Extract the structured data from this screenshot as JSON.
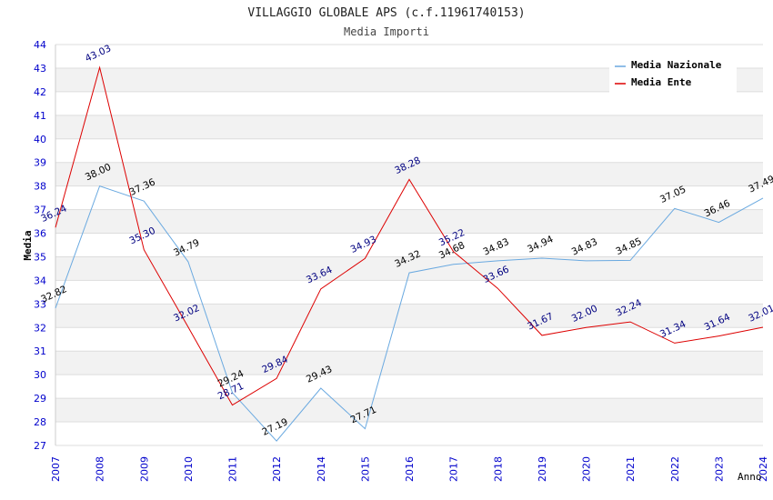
{
  "chart_data": {
    "type": "line",
    "title": "VILLAGGIO GLOBALE APS (c.f.11961740153)",
    "subtitle": "Media Importi",
    "xlabel": "Anno",
    "ylabel": "Media",
    "ylim": [
      27,
      44
    ],
    "yticks": [
      "27",
      "28",
      "29",
      "30",
      "31",
      "32",
      "33",
      "34",
      "35",
      "36",
      "37",
      "38",
      "39",
      "40",
      "41",
      "42",
      "43",
      "44"
    ],
    "categories": [
      "2007",
      "2008",
      "2009",
      "2010",
      "2011",
      "2012",
      "2014",
      "2015",
      "2016",
      "2017",
      "2018",
      "2019",
      "2020",
      "2021",
      "2022",
      "2023",
      "2024"
    ],
    "series": [
      {
        "name": "Media Nazionale",
        "color": "#6aa9e0",
        "label_color": "#000000",
        "values": [
          32.82,
          38.0,
          37.36,
          34.79,
          29.24,
          27.19,
          29.43,
          27.71,
          34.32,
          34.68,
          34.83,
          34.94,
          34.83,
          34.85,
          37.05,
          36.46,
          37.49
        ],
        "labels": [
          "32.82",
          "38.00",
          "37.36",
          "34.79",
          "29.24",
          "27.19",
          "29.43",
          "27.71",
          "34.32",
          "34.68",
          "34.83",
          "34.94",
          "34.83",
          "34.85",
          "37.05",
          "36.46",
          "37.49"
        ]
      },
      {
        "name": "Media Ente",
        "color": "#dd0000",
        "label_color": "#000080",
        "values": [
          36.24,
          43.03,
          35.3,
          32.02,
          28.71,
          29.84,
          33.64,
          34.93,
          38.28,
          35.22,
          33.66,
          31.67,
          32.0,
          32.24,
          31.34,
          31.64,
          32.01
        ],
        "labels": [
          "36.24",
          "43.03",
          "35.30",
          "32.02",
          "28.71",
          "29.84",
          "33.64",
          "34.93",
          "38.28",
          "35.22",
          "33.66",
          "31.67",
          "32.00",
          "32.24",
          "31.34",
          "31.64",
          "32.01"
        ]
      }
    ],
    "legend_position": "top-right"
  }
}
